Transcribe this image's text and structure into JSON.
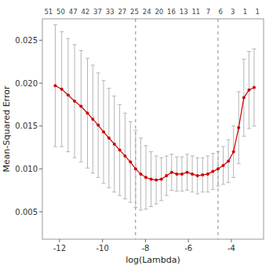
{
  "chart_data": {
    "type": "line",
    "title": "",
    "xlabel": "log(Lambda)",
    "ylabel": "Mean-Squared Error",
    "top_labels": [
      "51",
      "50",
      "47",
      "42",
      "37",
      "33",
      "27",
      "25",
      "24",
      "20",
      "16",
      "13",
      "11",
      "7",
      "6",
      "3",
      "1",
      "1"
    ],
    "xlim": [
      -12.8,
      -2.5
    ],
    "ylim": [
      0.0018,
      0.0275
    ],
    "xticks": [
      -12,
      -10,
      -8,
      -6,
      -4
    ],
    "yticks": [
      0.005,
      {
        "value": 0.01,
        "label": "0.010"
      },
      0.015,
      {
        "value": 0.02,
        "label": "0.020"
      },
      0.025
    ],
    "grid": false,
    "vlines": [
      -8.46,
      -4.62
    ],
    "x": [
      -12.2,
      -11.9,
      -11.6,
      -11.3,
      -11.0,
      -10.7,
      -10.45,
      -10.2,
      -9.95,
      -9.7,
      -9.45,
      -9.2,
      -8.95,
      -8.7,
      -8.46,
      -8.22,
      -7.98,
      -7.74,
      -7.5,
      -7.26,
      -7.02,
      -6.78,
      -6.54,
      -6.3,
      -6.06,
      -5.82,
      -5.58,
      -5.34,
      -5.1,
      -4.86,
      -4.62,
      -4.38,
      -4.14,
      -3.9,
      -3.66,
      -3.42,
      -3.18,
      -2.94
    ],
    "series": [
      {
        "color": "#cc0000",
        "marker": "circle",
        "line_style": "solid",
        "values": [
          0.0197,
          0.0193,
          0.0186,
          0.0179,
          0.0173,
          0.0165,
          0.0158,
          0.0151,
          0.0143,
          0.0136,
          0.0129,
          0.0122,
          0.0115,
          0.0108,
          0.01,
          0.0094,
          0.009,
          0.0088,
          0.0087,
          0.0088,
          0.0092,
          0.0096,
          0.0094,
          0.0094,
          0.0096,
          0.0094,
          0.0092,
          0.0093,
          0.0094,
          0.0097,
          0.01,
          0.0104,
          0.0109,
          0.012,
          0.0148,
          0.0183,
          0.0192,
          0.0195
        ],
        "upper": [
          0.0268,
          0.026,
          0.0252,
          0.0245,
          0.0238,
          0.0229,
          0.0221,
          0.0212,
          0.0203,
          0.0194,
          0.0185,
          0.0175,
          0.0165,
          0.0155,
          0.0145,
          0.0136,
          0.0127,
          0.012,
          0.0115,
          0.0113,
          0.0115,
          0.0117,
          0.0114,
          0.0114,
          0.0117,
          0.0115,
          0.0113,
          0.0113,
          0.0115,
          0.0118,
          0.012,
          0.0126,
          0.0134,
          0.015,
          0.019,
          0.0228,
          0.0237,
          0.024
        ],
        "lower": [
          0.0126,
          0.0126,
          0.012,
          0.0113,
          0.0108,
          0.0101,
          0.0095,
          0.009,
          0.0083,
          0.0078,
          0.0073,
          0.0069,
          0.0065,
          0.0061,
          0.0055,
          0.0052,
          0.0053,
          0.0056,
          0.0059,
          0.0063,
          0.0069,
          0.0075,
          0.0074,
          0.0074,
          0.0075,
          0.0073,
          0.0071,
          0.0073,
          0.0073,
          0.0076,
          0.008,
          0.0082,
          0.0084,
          0.009,
          0.0106,
          0.0138,
          0.0147,
          0.015
        ]
      }
    ]
  }
}
